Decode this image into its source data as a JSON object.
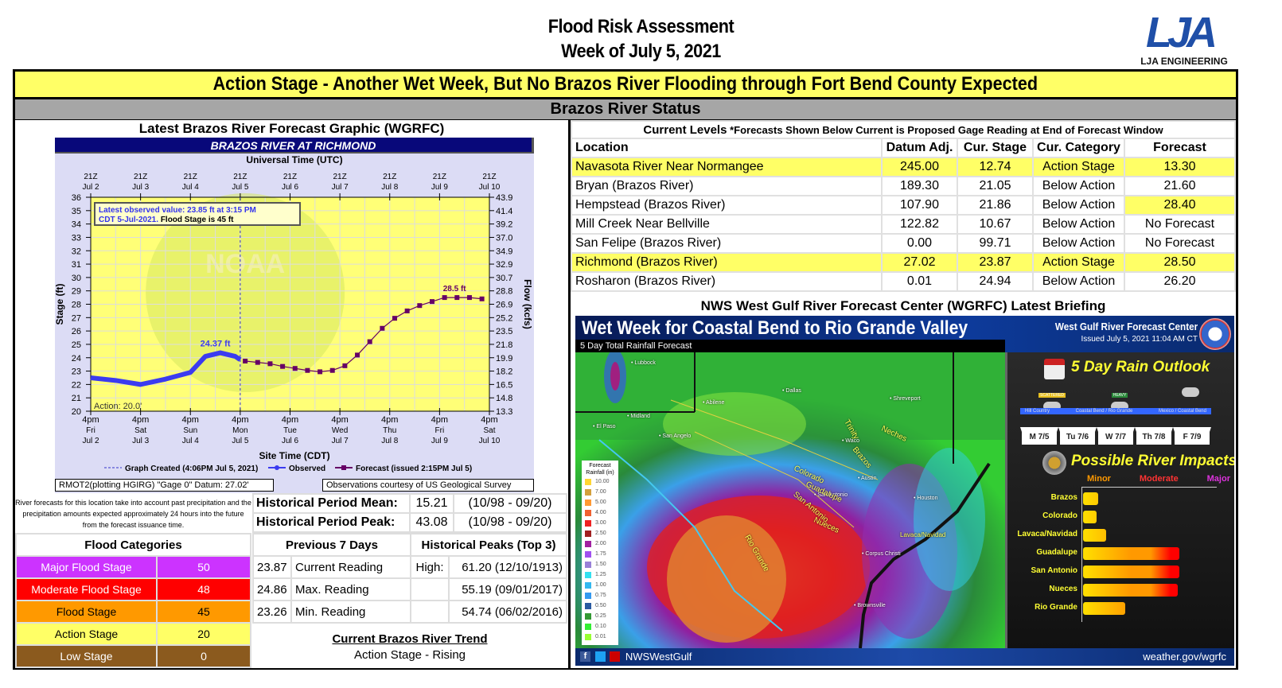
{
  "header": {
    "title_line1": "Flood Risk Assessment",
    "title_line2": "Week of July 5, 2021",
    "logo_mark": "LJA",
    "logo_text": "LJA ENGINEERING"
  },
  "banner": "Action Stage - Another Wet Week, But No Brazos River Flooding through Fort Bend County Expected",
  "status_bar": "Brazos River Status",
  "forecast_graphic": {
    "section_title": "Latest Brazos River Forecast Graphic (WGRFC)",
    "chart_title": "BRAZOS RIVER AT RICHMOND",
    "top_axis_label": "Universal Time (UTC)",
    "bottom_axis_label": "Site Time (CDT)",
    "y_left_label": "Stage (ft)",
    "y_right_label": "Flow (kcfs)",
    "latest_obs_line1": "Latest observed value: 23.85 ft at 3:15 PM",
    "latest_obs_line2a": "CDT 5-Jul-2021.",
    "latest_obs_line2b": "Flood Stage is 45 ft",
    "action_label": "Action:  20.0'",
    "obs_peak_label": "24.37 ft",
    "fcst_peak_label": "28.5 ft",
    "watermark": "NOAA",
    "legend": {
      "created": "Graph Created (4:06PM Jul 5, 2021)",
      "observed": "Observed",
      "forecast": "Forecast (issued 2:15PM Jul 5)"
    },
    "gage_datum": "RMOT2(plotting HGIRG) \"Gage 0\" Datum: 27.02'",
    "courtesy": "Observations courtesy of US Geological Survey"
  },
  "chart_data": {
    "type": "line",
    "title": "BRAZOS RIVER AT RICHMOND",
    "xlabel": "Site Time (CDT)",
    "xlabel_top": "Universal Time (UTC)",
    "ylabel": "Stage (ft)",
    "ylabel_right": "Flow (kcfs)",
    "x_ticks_bottom": [
      {
        "time": "4pm",
        "day": "Fri",
        "date": "Jul 2"
      },
      {
        "time": "4pm",
        "day": "Sat",
        "date": "Jul 3"
      },
      {
        "time": "4pm",
        "day": "Sun",
        "date": "Jul 4"
      },
      {
        "time": "4pm",
        "day": "Mon",
        "date": "Jul 5"
      },
      {
        "time": "4pm",
        "day": "Tue",
        "date": "Jul 6"
      },
      {
        "time": "4pm",
        "day": "Wed",
        "date": "Jul 7"
      },
      {
        "time": "4pm",
        "day": "Thu",
        "date": "Jul 8"
      },
      {
        "time": "4pm",
        "day": "Fri",
        "date": "Jul 9"
      },
      {
        "time": "4pm",
        "day": "Sat",
        "date": "Jul 10"
      }
    ],
    "x_ticks_top": [
      {
        "z": "21Z",
        "date": "Jul  2"
      },
      {
        "z": "21Z",
        "date": "Jul  3"
      },
      {
        "z": "21Z",
        "date": "Jul  4"
      },
      {
        "z": "21Z",
        "date": "Jul  5"
      },
      {
        "z": "21Z",
        "date": "Jul  6"
      },
      {
        "z": "21Z",
        "date": "Jul  7"
      },
      {
        "z": "21Z",
        "date": "Jul  8"
      },
      {
        "z": "21Z",
        "date": "Jul  9"
      },
      {
        "z": "21Z",
        "date": "Jul 10"
      }
    ],
    "y_left_ticks": [
      36,
      35,
      34,
      33,
      32,
      31,
      30,
      29,
      28,
      27,
      26,
      25,
      24,
      23,
      22,
      21,
      20
    ],
    "y_right_ticks": [
      "43.9",
      "41.4",
      "39.2",
      "37.0",
      "34.9",
      "32.9",
      "30.7",
      "28.8",
      "26.9",
      "25.2",
      "23.5",
      "21.8",
      "19.9",
      "18.2",
      "16.5",
      "14.8",
      "13.3"
    ],
    "ylim": [
      20,
      36
    ],
    "grid": true,
    "series": [
      {
        "name": "Observed",
        "color": "#3b3bf0",
        "x_days": [
          0,
          0.5,
          1.0,
          1.5,
          2.0,
          2.3,
          2.6,
          2.9,
          3.0
        ],
        "values": [
          22.5,
          22.3,
          22.0,
          22.4,
          22.9,
          24.1,
          24.37,
          24.1,
          23.85
        ]
      },
      {
        "name": "Forecast (issued 2:15PM Jul 5)",
        "color": "#660066",
        "x_days": [
          3.1,
          3.35,
          3.6,
          3.85,
          4.1,
          4.35,
          4.6,
          4.85,
          5.1,
          5.35,
          5.6,
          5.85,
          6.1,
          6.35,
          6.6,
          6.85,
          7.1,
          7.35,
          7.6,
          7.85
        ],
        "values": [
          23.75,
          23.65,
          23.55,
          23.35,
          23.2,
          23.05,
          22.95,
          23.05,
          23.4,
          24.2,
          25.2,
          26.2,
          26.95,
          27.5,
          27.9,
          28.2,
          28.5,
          28.5,
          28.5,
          28.4
        ]
      }
    ],
    "annotations": [
      {
        "text": "24.37 ft",
        "series": "Observed"
      },
      {
        "text": "28.5 ft",
        "series": "Forecast"
      },
      {
        "text": "Action:  20.0'"
      },
      {
        "text": "Graph Created (4:06PM Jul 5, 2021)",
        "x_day": 3.0
      }
    ]
  },
  "forecast_note": "River forecasts for this location take into account past precipitation and the precipitation amounts expected approximately 24 hours into the future from the forecast issuance time.",
  "historical": [
    {
      "label": "Historical Period Mean:",
      "value": "15.21",
      "period": "(10/98 - 09/20)"
    },
    {
      "label": "Historical Period Peak:",
      "value": "43.08",
      "period": "(10/98 - 09/20)"
    }
  ],
  "flood_categories": {
    "title": "Flood Categories",
    "rows": [
      {
        "label": "Major Flood Stage",
        "value": "50",
        "color": "#cc33ff",
        "text_color": "#ffffff"
      },
      {
        "label": "Moderate Flood Stage",
        "value": "48",
        "color": "#ff0000",
        "text_color": "#ffffff"
      },
      {
        "label": "Flood Stage",
        "value": "45",
        "color": "#ff9900",
        "text_color": "#000000"
      },
      {
        "label": "Action Stage",
        "value": "20",
        "color": "#ffff66",
        "text_color": "#000000"
      },
      {
        "label": "Low Stage",
        "value": "0",
        "color": "#8b5a1e",
        "text_color": "#ffffff"
      }
    ]
  },
  "previous_7_days": {
    "title": "Previous 7 Days",
    "rows": [
      {
        "value": "23.87",
        "label": "Current Reading"
      },
      {
        "value": "24.86",
        "label": "Max. Reading"
      },
      {
        "value": "23.26",
        "label": "Min. Reading"
      }
    ]
  },
  "historical_peaks": {
    "title": "Historical Peaks (Top 3)",
    "rows": [
      {
        "label": "High:",
        "value": "61.20 (12/10/1913)"
      },
      {
        "label": "",
        "value": "55.19 (09/01/2017)"
      },
      {
        "label": "",
        "value": "54.74 (06/02/2016)"
      }
    ]
  },
  "trend": {
    "title": "Current Brazos River Trend ",
    "value": "Action Stage - Rising"
  },
  "current_levels": {
    "title_bold": "Current Levels",
    "title_note": " *Forecasts Shown Below Current is Proposed Gage Reading at End of Forecast Window",
    "columns": [
      "Location",
      "Datum Adj.",
      "Cur. Stage",
      "Cur. Category",
      "Forecast"
    ],
    "rows": [
      {
        "location": "Navasota River Near Normangee",
        "datum": "245.00",
        "stage": "12.74",
        "category": "Action Stage",
        "forecast": "13.30",
        "row_hl": true,
        "fc_hl": true
      },
      {
        "location": "Bryan (Brazos River)",
        "datum": "189.30",
        "stage": "21.05",
        "category": "Below Action",
        "forecast": "21.60",
        "row_hl": false,
        "fc_hl": false
      },
      {
        "location": "Hempstead (Brazos River)",
        "datum": "107.90",
        "stage": "21.86",
        "category": "Below Action",
        "forecast": "28.40",
        "row_hl": false,
        "fc_hl": true
      },
      {
        "location": "Mill Creek Near Bellville",
        "datum": "122.82",
        "stage": "10.67",
        "category": "Below Action",
        "forecast": "No Forecast",
        "row_hl": false,
        "fc_hl": false
      },
      {
        "location": "San Felipe (Brazos River)",
        "datum": "0.00",
        "stage": "99.71",
        "category": "Below Action",
        "forecast": "No Forecast",
        "row_hl": false,
        "fc_hl": false
      },
      {
        "location": "Richmond (Brazos River)",
        "datum": "27.02",
        "stage": "23.87",
        "category": "Action Stage",
        "forecast": "28.50",
        "row_hl": true,
        "fc_hl": true
      },
      {
        "location": "Rosharon (Brazos River)",
        "datum": "0.01",
        "stage": "24.94",
        "category": "Below Action",
        "forecast": "26.20",
        "row_hl": false,
        "fc_hl": false
      }
    ]
  },
  "briefing": {
    "section_title": "NWS West Gulf River Forecast Center (WGRFC) Latest Briefing",
    "headline": "Wet Week for Coastal Bend to Rio Grande Valley",
    "subhead": "5 Day Total Rainfall Forecast",
    "center_name": "West Gulf River Forecast Center",
    "issued": "Issued July 5, 2021 11:04 AM CT",
    "map_labels": {
      "cities": [
        "Lubbock",
        "Dallas",
        "Shreveport",
        "El Paso",
        "Midland",
        "Abilene",
        "San Angelo",
        "Waco",
        "Austin",
        "San Antonio",
        "Houston",
        "Corpus Christi",
        "Brownsville"
      ],
      "rivers": [
        "Trinity",
        "Neches",
        "Brazos",
        "Colorado",
        "Guadalupe",
        "San Antonio",
        "Nueces",
        "Rio Grande"
      ],
      "callout": "Lavaca/Navidad"
    },
    "rain_legend": {
      "title": "Forecast Rainfall (in)",
      "items": [
        {
          "v": "10.00",
          "c": "#ffd633"
        },
        {
          "v": "7.00",
          "c": "#d4a03c"
        },
        {
          "v": "5.00",
          "c": "#ff9933"
        },
        {
          "v": "4.00",
          "c": "#f06030"
        },
        {
          "v": "3.00",
          "c": "#ee2222"
        },
        {
          "v": "2.50",
          "c": "#a02020"
        },
        {
          "v": "2.00",
          "c": "#a020a0"
        },
        {
          "v": "1.75",
          "c": "#a050f0"
        },
        {
          "v": "1.50",
          "c": "#9980d8"
        },
        {
          "v": "1.25",
          "c": "#33e0f0"
        },
        {
          "v": "1.00",
          "c": "#33b8f0"
        },
        {
          "v": "0.75",
          "c": "#3399f0"
        },
        {
          "v": "0.50",
          "c": "#2a5aa0"
        },
        {
          "v": "0.25",
          "c": "#339933"
        },
        {
          "v": "0.10",
          "c": "#33ee33"
        },
        {
          "v": "0.01",
          "c": "#99ff33"
        }
      ]
    },
    "outlook": {
      "title": "5 Day Rain Outlook",
      "weather": [
        {
          "tag": "SCATTERED",
          "region": "Hill Country"
        },
        {
          "tag": "HEAVY",
          "region": "Coastal Bend / Rio Grande"
        },
        {
          "tag": "",
          "region": "Mexico / Coastal Bend"
        }
      ],
      "days": [
        "M 7/5",
        "Tu 7/6",
        "W 7/7",
        "Th 7/8",
        "F 7/9"
      ]
    },
    "impacts": {
      "title": "Possible River Impacts",
      "levels": [
        {
          "label": "Minor",
          "color": "#ff9900"
        },
        {
          "label": "Moderate",
          "color": "#ff3333"
        },
        {
          "label": "Major",
          "color": "#dd33dd"
        }
      ],
      "rivers": [
        {
          "name": "Brazos",
          "pct": 11
        },
        {
          "name": "Colorado",
          "pct": 10
        },
        {
          "name": "Lavaca/Navidad",
          "pct": 17
        },
        {
          "name": "Guadalupe",
          "pct": 71
        },
        {
          "name": "San Antonio",
          "pct": 71
        },
        {
          "name": "Nueces",
          "pct": 70
        },
        {
          "name": "Rio Grande",
          "pct": 31
        }
      ]
    },
    "social_handle": "NWSWestGulf",
    "website": "weather.gov/wgrfc"
  }
}
